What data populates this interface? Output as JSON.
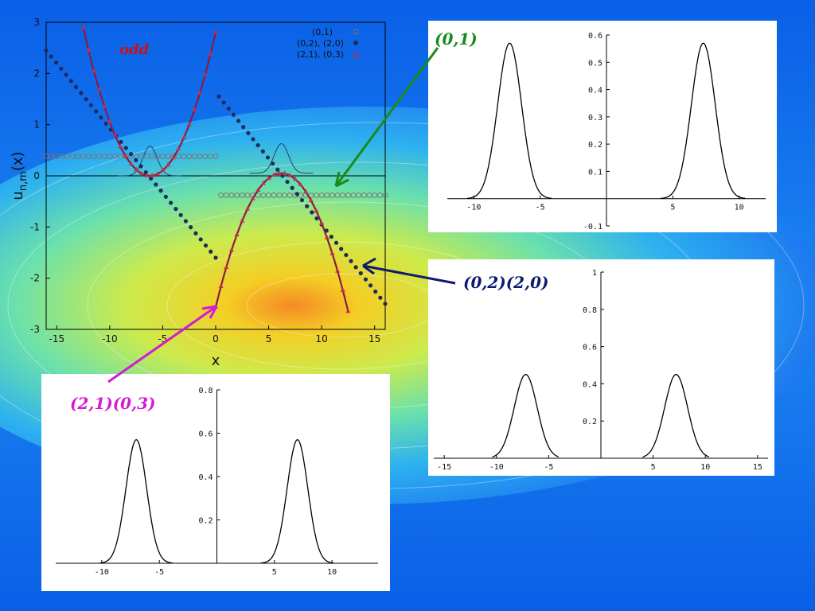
{
  "slide": {
    "label_odd": "odd",
    "callout_01": "(0,1)",
    "callout_02_20": "(0,2)(2,0)",
    "callout_21_03": "(2,1)(0,3)",
    "colors": {
      "background": "#1a6ff0",
      "callout_01": "#1a8a1a",
      "callout_02_20": "#0d1a6e",
      "callout_21_03": "#d41ad4",
      "odd_label": "#cc1111"
    }
  },
  "chart_data": [
    {
      "type": "scatter",
      "title": "",
      "xlabel": "x",
      "ylabel": "u_{n,m}(x)",
      "xlim": [
        -16,
        16
      ],
      "ylim": [
        -3,
        3
      ],
      "xticks": [
        "-15",
        "-10",
        "-5",
        "0",
        "5",
        "10",
        "15"
      ],
      "yticks": [
        "-3",
        "-2",
        "-1",
        "0",
        "1",
        "2",
        "3"
      ],
      "legend_position": "top-right",
      "series": [
        {
          "name": "(0,1)",
          "marker": "open-circle",
          "color": "#777777",
          "segments": [
            {
              "x_from": -16,
              "x_to": 0,
              "y": 0.38
            },
            {
              "x_from": 0.5,
              "x_to": 16,
              "y": -0.38
            }
          ]
        },
        {
          "name": "(0,2), (2,0)",
          "marker": "filled-circle",
          "color": "#1f2a5c",
          "segments": [
            {
              "x_from": -16,
              "y_from": 2.45,
              "x_to": 0,
              "y_to": -1.6
            },
            {
              "x_from": 0.3,
              "y_from": 1.55,
              "x_to": 16,
              "y_to": -2.5
            }
          ]
        },
        {
          "name": "(2,1), (0,3)",
          "marker": "triangle",
          "color": "#c0304a",
          "curves": [
            {
              "x_from": -12.5,
              "x_to": 0,
              "form": "parabola",
              "vertex_x": -6.2,
              "vertex_y": 0.0,
              "a": 0.073
            },
            {
              "x_from": 0,
              "x_to": 12.5,
              "form": "parabola",
              "vertex_x": 6.2,
              "vertex_y": 0.05,
              "a": -0.068
            }
          ]
        }
      ],
      "extra_lines": [
        {
          "name": "parabola-left",
          "color": "#8a1a4a"
        },
        {
          "name": "parabola-right",
          "color": "#8a1a4a"
        },
        {
          "name": "gaussian-bumps",
          "color": "#2a3a7a"
        }
      ],
      "annotation": "odd"
    },
    {
      "type": "line",
      "title": "",
      "xlim": [
        -12,
        12
      ],
      "ylim": [
        -0.1,
        0.6
      ],
      "xticks": [
        "-10",
        "-5",
        "5",
        "10"
      ],
      "yticks": [
        "-0.1",
        "0.1",
        "0.2",
        "0.3",
        "0.4",
        "0.5",
        "0.6"
      ],
      "series": [
        {
          "peaks": [
            -7.3,
            7.3
          ],
          "amplitude": 0.57,
          "width": 0.9
        }
      ]
    },
    {
      "type": "line",
      "title": "",
      "xlim": [
        -16,
        16
      ],
      "ylim": [
        0,
        1
      ],
      "xticks": [
        "-15",
        "-10",
        "-5",
        "5",
        "10",
        "15"
      ],
      "yticks": [
        "0.2",
        "0.4",
        "0.6",
        "0.8",
        "1"
      ],
      "series": [
        {
          "peaks": [
            -7.2,
            7.2
          ],
          "amplitude": 0.45,
          "width": 1.1
        }
      ]
    },
    {
      "type": "line",
      "title": "",
      "xlim": [
        -14,
        14
      ],
      "ylim": [
        0,
        0.8
      ],
      "xticks": [
        "-10",
        "-5",
        "5",
        "10"
      ],
      "yticks": [
        "0.2",
        "0.4",
        "0.6",
        "0.8"
      ],
      "series": [
        {
          "peaks": [
            -7.0,
            7.0
          ],
          "amplitude": 0.57,
          "width": 0.9
        }
      ]
    }
  ]
}
